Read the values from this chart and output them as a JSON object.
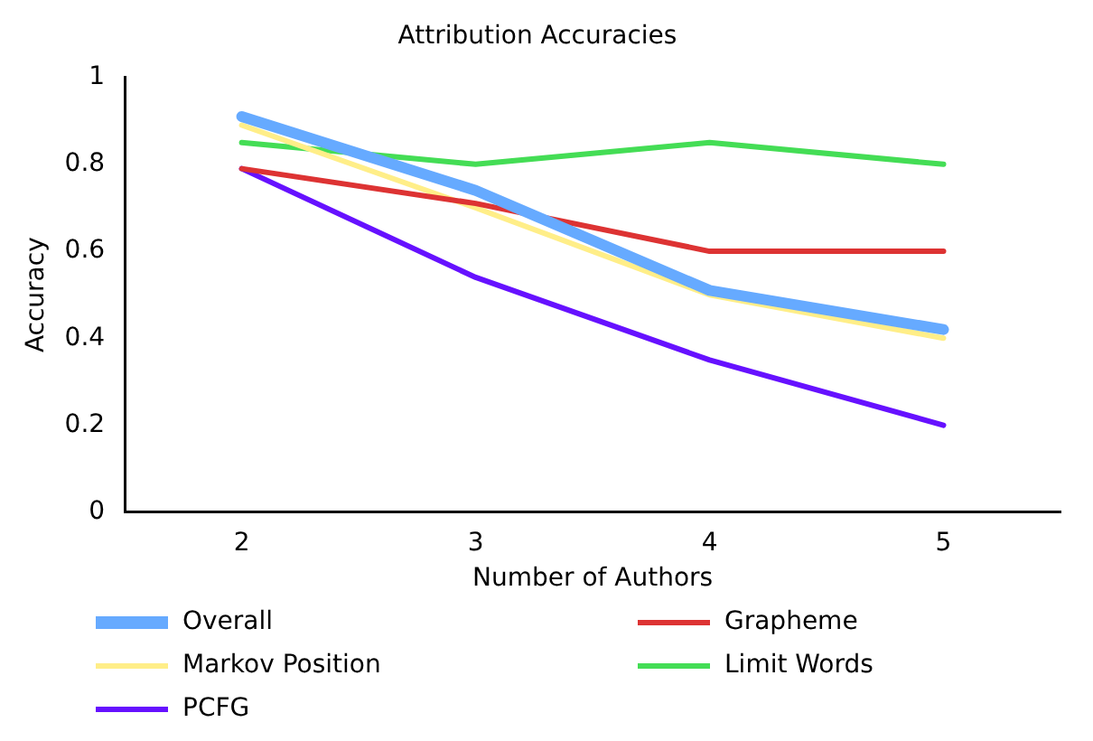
{
  "chart_data": {
    "type": "line",
    "title": "Attribution Accuracies",
    "xlabel": "Number of Authors",
    "ylabel": "Accuracy",
    "categories": [
      "2",
      "3",
      "4",
      "5"
    ],
    "series": [
      {
        "name": "Overall",
        "color": "#66aaff",
        "values": [
          0.91,
          0.74,
          0.51,
          0.42
        ]
      },
      {
        "name": "Grapheme",
        "color": "#dd3333",
        "values": [
          0.79,
          0.71,
          0.6,
          0.6
        ]
      },
      {
        "name": "Markov Position",
        "color": "#ffee88",
        "values": [
          0.89,
          0.7,
          0.5,
          0.4
        ]
      },
      {
        "name": "Limit Words",
        "color": "#44dd55",
        "values": [
          0.85,
          0.8,
          0.85,
          0.8
        ]
      },
      {
        "name": "PCFG",
        "color": "#6611ff",
        "values": [
          0.79,
          0.54,
          0.35,
          0.2
        ]
      }
    ],
    "ylim": [
      0,
      1
    ],
    "yticks": [
      0,
      0.2,
      0.4,
      0.6,
      0.8,
      1
    ],
    "grid": false,
    "legend": "bottom",
    "marker": "none",
    "line_style": "solid"
  }
}
